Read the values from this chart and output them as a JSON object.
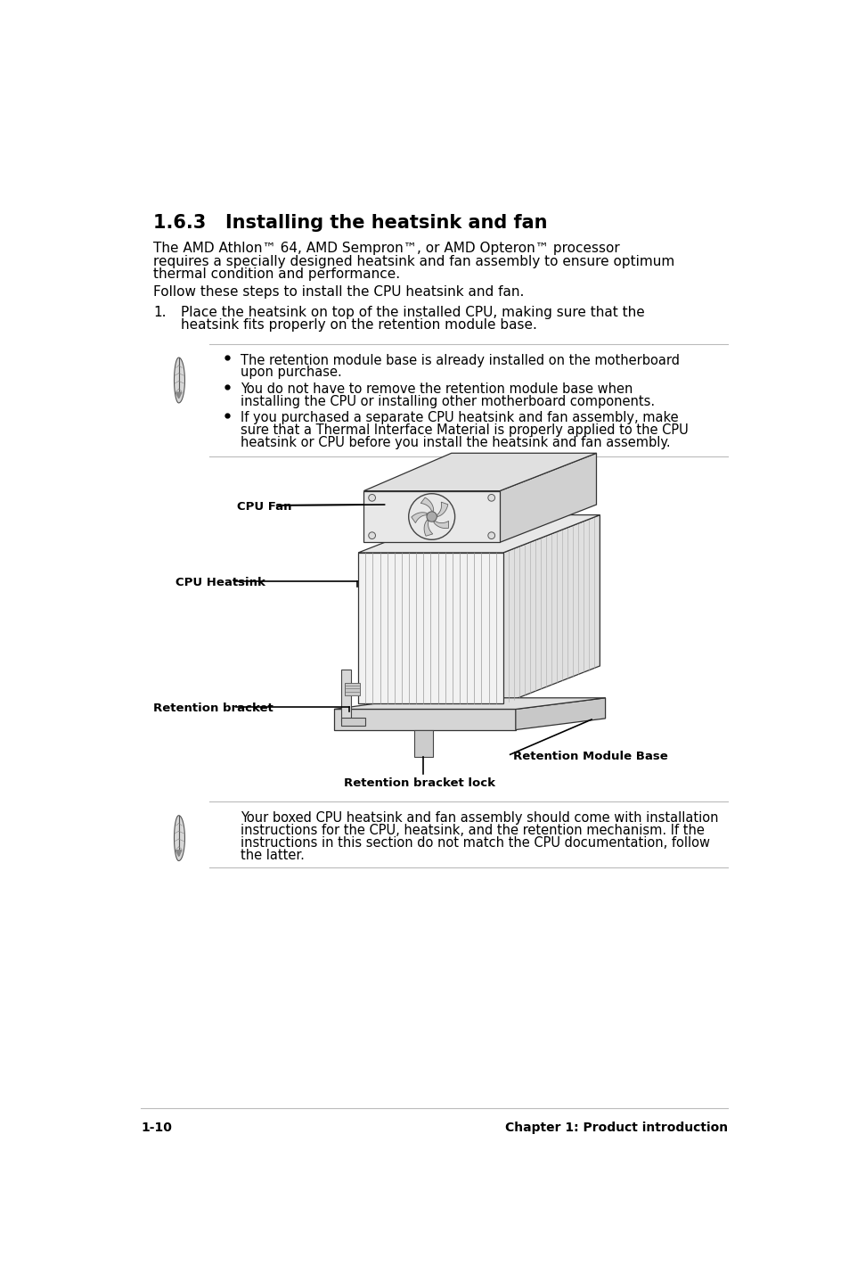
{
  "bg_color": "#ffffff",
  "title": "1.6.3   Installing the heatsink and fan",
  "title_fontsize": 15,
  "paragraph1_lines": [
    "The AMD Athlon™ 64, AMD Sempron™, or AMD Opteron™ processor",
    "requires a specially designed heatsink and fan assembly to ensure optimum",
    "thermal condition and performance."
  ],
  "paragraph2": "Follow these steps to install the CPU heatsink and fan.",
  "step1_num": "1.",
  "step1_lines": [
    "Place the heatsink on top of the installed CPU, making sure that the",
    "heatsink fits properly on the retention module base."
  ],
  "note1_bullets": [
    [
      "The retention module base is already installed on the motherboard",
      "upon purchase."
    ],
    [
      "You do not have to remove the retention module base when",
      "installing the CPU or installing other motherboard components."
    ],
    [
      "If you purchased a separate CPU heatsink and fan assembly, make",
      "sure that a Thermal Interface Material is properly applied to the CPU",
      "heatsink or CPU before you install the heatsink and fan assembly."
    ]
  ],
  "note2_lines": [
    "Your boxed CPU heatsink and fan assembly should come with installation",
    "instructions for the CPU, heatsink, and the retention mechanism. If the",
    "instructions in this section do not match the CPU documentation, follow",
    "the latter."
  ],
  "label_cpu_fan": "CPU Fan",
  "label_cpu_heatsink": "CPU Heatsink",
  "label_retention_bracket": "Retention bracket",
  "label_retention_bracket_lock": "Retention bracket lock",
  "label_retention_module_base": "Retention Module Base",
  "footer_left": "1-10",
  "footer_right": "Chapter 1: Product introduction"
}
